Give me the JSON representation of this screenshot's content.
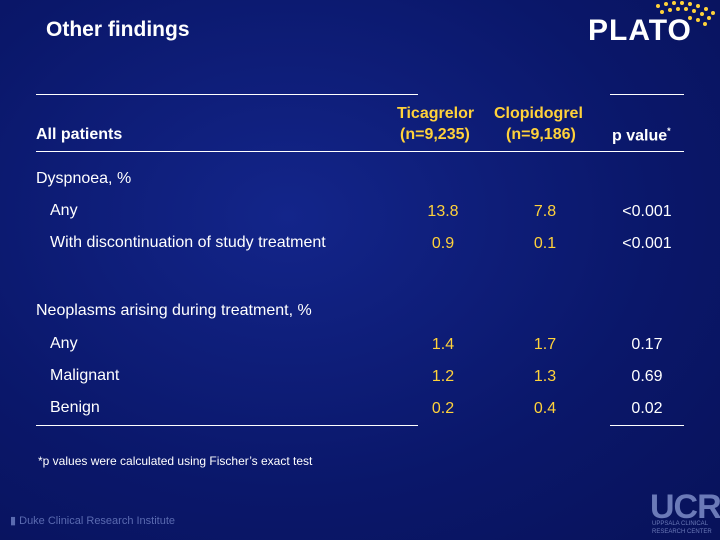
{
  "title": "Other findings",
  "logo": "PLATO",
  "header": {
    "row_label": "All patients",
    "ticagrelor_name": "Ticagrelor",
    "clopidogrel_name": "Clopidogrel",
    "ticagrelor_n": "(n=9,235)",
    "clopidogrel_n": "(n=9,186)",
    "pvalue_label": "p value",
    "pvalue_sup": "*"
  },
  "sections": [
    {
      "label": "Dyspnoea, %",
      "rows": [
        {
          "label": "Any",
          "ticagrelor": "13.8",
          "clopidogrel": "7.8",
          "p": "<0.001"
        },
        {
          "label": "With discontinuation of study treatment",
          "ticagrelor": "0.9",
          "clopidogrel": "0.1",
          "p": "<0.001"
        }
      ]
    },
    {
      "label": "Neoplasms arising during treatment, %",
      "rows": [
        {
          "label": "Any",
          "ticagrelor": "1.4",
          "clopidogrel": "1.7",
          "p": "0.17"
        },
        {
          "label": "Malignant",
          "ticagrelor": "1.2",
          "clopidogrel": "1.3",
          "p": "0.69"
        },
        {
          "label": "Benign",
          "ticagrelor": "0.2",
          "clopidogrel": "0.4",
          "p": "0.02"
        }
      ]
    }
  ],
  "footnote": "*p values were calculated using Fischer’s exact test",
  "duke_logo": "Duke Clinical Research Institute",
  "ucr_logo": "UCR",
  "ucr_sub": "UPPSALA CLINICAL RESEARCH CENTER",
  "colors": {
    "background": "#0b1a6e",
    "accent": "#ffd23a",
    "text": "#ffffff"
  }
}
